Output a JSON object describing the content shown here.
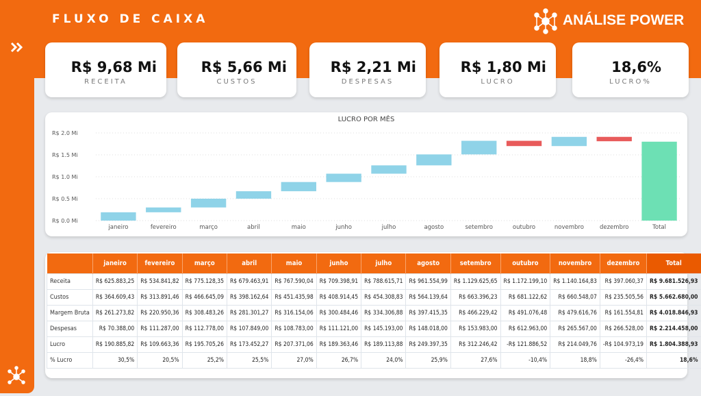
{
  "header": {
    "title": "FLUXO DE CAIXA",
    "logo": "ANÁLISE POWER"
  },
  "kpis": [
    {
      "value": "R$ 9,68 Mi",
      "label": "RECEITA"
    },
    {
      "value": "R$ 5,66 Mi",
      "label": "CUSTOS"
    },
    {
      "value": "R$ 2,21 Mi",
      "label": "DESPESAS"
    },
    {
      "value": "R$ 1,80 Mi",
      "label": "LUCRO"
    },
    {
      "value": "18,6%",
      "label": "LUCRO%"
    }
  ],
  "chart_data": {
    "type": "waterfall",
    "title": "LUCRO POR MÊS",
    "total": true,
    "categories": [
      "janeiro",
      "fevereiro",
      "março",
      "abril",
      "maio",
      "junho",
      "julho",
      "agosto",
      "setembro",
      "outubro",
      "novembro",
      "dezembro",
      "Total"
    ],
    "values": [
      0.19,
      0.11,
      0.2,
      0.17,
      0.21,
      0.19,
      0.19,
      0.25,
      0.31,
      -0.12,
      0.21,
      -0.1,
      1.8
    ],
    "colors": {
      "increase": "#8fd3e8",
      "decrease": "#e85b5b",
      "total": "#6de0b4"
    },
    "ylim": [
      0,
      2.0
    ],
    "yticks": [
      {
        "value": 0,
        "label": "R$ 0.0 Mi"
      },
      {
        "value": 0.5,
        "label": "R$ 0.5 Mi"
      },
      {
        "value": 1,
        "label": "R$ 1.0 Mi"
      },
      {
        "value": 1.5,
        "label": "R$ 1.5 Mi"
      },
      {
        "value": 2,
        "label": "R$ 2.0 Mi"
      }
    ],
    "grid": true
  },
  "table": {
    "columns": [
      "janeiro",
      "fevereiro",
      "março",
      "abril",
      "maio",
      "junho",
      "julho",
      "agosto",
      "setembro",
      "outubro",
      "novembro",
      "dezembro",
      "Total"
    ],
    "rows": [
      {
        "label": "Receita",
        "cells": [
          "R$ 625.883,25",
          "R$ 534.841,82",
          "R$ 775.128,35",
          "R$ 679.463,91",
          "R$ 767.590,04",
          "R$ 709.398,91",
          "R$ 788.615,71",
          "R$ 961.554,99",
          "R$ 1.129.625,65",
          "R$ 1.172.199,10",
          "R$ 1.140.164,83",
          "R$ 397.060,37",
          "R$ 9.681.526,93"
        ]
      },
      {
        "label": "Custos",
        "cells": [
          "R$ 364.609,43",
          "R$ 313.891,46",
          "R$ 466.645,09",
          "R$ 398.162,64",
          "R$ 451.435,98",
          "R$ 408.914,45",
          "R$ 454.308,83",
          "R$ 564.139,64",
          "R$ 663.396,23",
          "R$ 681.122,62",
          "R$ 660.548,07",
          "R$ 235.505,56",
          "R$ 5.662.680,00"
        ]
      },
      {
        "label": "Margem Bruta",
        "cells": [
          "R$ 261.273,82",
          "R$ 220.950,36",
          "R$ 308.483,26",
          "R$ 281.301,27",
          "R$ 316.154,06",
          "R$ 300.484,46",
          "R$ 334.306,88",
          "R$ 397.415,35",
          "R$ 466.229,42",
          "R$ 491.076,48",
          "R$ 479.616,76",
          "R$ 161.554,81",
          "R$ 4.018.846,93"
        ]
      },
      {
        "label": "Despesas",
        "cells": [
          "R$ 70.388,00",
          "R$ 111.287,00",
          "R$ 112.778,00",
          "R$ 107.849,00",
          "R$ 108.783,00",
          "R$ 111.121,00",
          "R$ 145.193,00",
          "R$ 148.018,00",
          "R$ 153.983,00",
          "R$ 612.963,00",
          "R$ 265.567,00",
          "R$ 266.528,00",
          "R$ 2.214.458,00"
        ]
      },
      {
        "label": "Lucro",
        "cells": [
          "R$ 190.885,82",
          "R$ 109.663,36",
          "R$ 195.705,26",
          "R$ 173.452,27",
          "R$ 207.371,06",
          "R$ 189.363,46",
          "R$ 189.113,88",
          "R$ 249.397,35",
          "R$ 312.246,42",
          "-R$ 121.886,52",
          "R$ 214.049,76",
          "-R$ 104.973,19",
          "R$ 1.804.388,93"
        ]
      },
      {
        "label": "% Lucro",
        "cells": [
          "30,5%",
          "20,5%",
          "25,2%",
          "25,5%",
          "27,0%",
          "26,7%",
          "24,0%",
          "25,9%",
          "27,6%",
          "-10,4%",
          "18,8%",
          "-26,4%",
          "18,6%"
        ]
      }
    ]
  }
}
